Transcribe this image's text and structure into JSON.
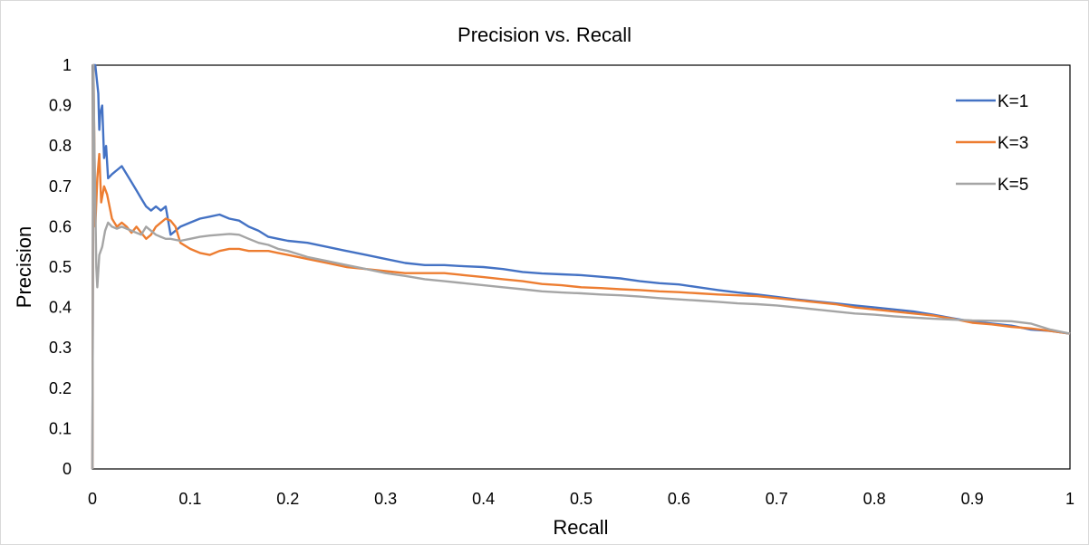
{
  "chart_data": {
    "type": "line",
    "title": "Precision vs. Recall",
    "xlabel": "Recall",
    "ylabel": "Precision",
    "xlim": [
      0,
      1
    ],
    "ylim": [
      0,
      1
    ],
    "x_ticks": [
      "0",
      "0.1",
      "0.2",
      "0.3",
      "0.4",
      "0.5",
      "0.6",
      "0.7",
      "0.8",
      "0.9",
      "1"
    ],
    "y_ticks": [
      "0",
      "0.1",
      "0.2",
      "0.3",
      "0.4",
      "0.5",
      "0.6",
      "0.7",
      "0.8",
      "0.9",
      "1"
    ],
    "grid": false,
    "legend_position": "top-right",
    "series": [
      {
        "name": "K=1",
        "color": "#4472C4",
        "points": [
          [
            0.0,
            0.0
          ],
          [
            0.001,
            1.0
          ],
          [
            0.003,
            1.0
          ],
          [
            0.006,
            0.93
          ],
          [
            0.007,
            0.84
          ],
          [
            0.008,
            0.88
          ],
          [
            0.01,
            0.9
          ],
          [
            0.012,
            0.77
          ],
          [
            0.014,
            0.8
          ],
          [
            0.016,
            0.72
          ],
          [
            0.02,
            0.73
          ],
          [
            0.025,
            0.74
          ],
          [
            0.03,
            0.75
          ],
          [
            0.035,
            0.73
          ],
          [
            0.04,
            0.71
          ],
          [
            0.045,
            0.69
          ],
          [
            0.05,
            0.67
          ],
          [
            0.055,
            0.65
          ],
          [
            0.06,
            0.64
          ],
          [
            0.065,
            0.65
          ],
          [
            0.07,
            0.64
          ],
          [
            0.075,
            0.65
          ],
          [
            0.08,
            0.58
          ],
          [
            0.09,
            0.6
          ],
          [
            0.1,
            0.61
          ],
          [
            0.11,
            0.62
          ],
          [
            0.12,
            0.625
          ],
          [
            0.13,
            0.63
          ],
          [
            0.14,
            0.62
          ],
          [
            0.15,
            0.615
          ],
          [
            0.16,
            0.6
          ],
          [
            0.17,
            0.59
          ],
          [
            0.18,
            0.575
          ],
          [
            0.19,
            0.57
          ],
          [
            0.2,
            0.565
          ],
          [
            0.22,
            0.56
          ],
          [
            0.24,
            0.55
          ],
          [
            0.26,
            0.54
          ],
          [
            0.28,
            0.53
          ],
          [
            0.3,
            0.52
          ],
          [
            0.32,
            0.51
          ],
          [
            0.34,
            0.505
          ],
          [
            0.36,
            0.505
          ],
          [
            0.38,
            0.502
          ],
          [
            0.4,
            0.5
          ],
          [
            0.42,
            0.495
          ],
          [
            0.44,
            0.488
          ],
          [
            0.46,
            0.484
          ],
          [
            0.48,
            0.482
          ],
          [
            0.5,
            0.48
          ],
          [
            0.52,
            0.476
          ],
          [
            0.54,
            0.472
          ],
          [
            0.56,
            0.465
          ],
          [
            0.58,
            0.46
          ],
          [
            0.6,
            0.457
          ],
          [
            0.62,
            0.45
          ],
          [
            0.64,
            0.443
          ],
          [
            0.66,
            0.437
          ],
          [
            0.68,
            0.432
          ],
          [
            0.7,
            0.426
          ],
          [
            0.72,
            0.42
          ],
          [
            0.74,
            0.415
          ],
          [
            0.76,
            0.41
          ],
          [
            0.78,
            0.405
          ],
          [
            0.8,
            0.4
          ],
          [
            0.82,
            0.395
          ],
          [
            0.84,
            0.39
          ],
          [
            0.86,
            0.382
          ],
          [
            0.88,
            0.373
          ],
          [
            0.9,
            0.365
          ],
          [
            0.92,
            0.36
          ],
          [
            0.94,
            0.355
          ],
          [
            0.96,
            0.345
          ],
          [
            0.98,
            0.342
          ],
          [
            1.0,
            0.335
          ]
        ]
      },
      {
        "name": "K=3",
        "color": "#ED7D31",
        "points": [
          [
            0.0,
            0.0
          ],
          [
            0.001,
            1.0
          ],
          [
            0.003,
            0.6
          ],
          [
            0.005,
            0.72
          ],
          [
            0.007,
            0.78
          ],
          [
            0.009,
            0.66
          ],
          [
            0.012,
            0.7
          ],
          [
            0.015,
            0.68
          ],
          [
            0.02,
            0.62
          ],
          [
            0.025,
            0.6
          ],
          [
            0.03,
            0.61
          ],
          [
            0.035,
            0.6
          ],
          [
            0.04,
            0.585
          ],
          [
            0.045,
            0.6
          ],
          [
            0.05,
            0.585
          ],
          [
            0.055,
            0.57
          ],
          [
            0.06,
            0.58
          ],
          [
            0.065,
            0.6
          ],
          [
            0.07,
            0.61
          ],
          [
            0.075,
            0.62
          ],
          [
            0.08,
            0.615
          ],
          [
            0.085,
            0.6
          ],
          [
            0.09,
            0.56
          ],
          [
            0.1,
            0.545
          ],
          [
            0.11,
            0.535
          ],
          [
            0.12,
            0.53
          ],
          [
            0.13,
            0.54
          ],
          [
            0.14,
            0.545
          ],
          [
            0.15,
            0.545
          ],
          [
            0.16,
            0.54
          ],
          [
            0.17,
            0.54
          ],
          [
            0.18,
            0.54
          ],
          [
            0.19,
            0.535
          ],
          [
            0.2,
            0.53
          ],
          [
            0.22,
            0.52
          ],
          [
            0.24,
            0.51
          ],
          [
            0.26,
            0.5
          ],
          [
            0.28,
            0.495
          ],
          [
            0.3,
            0.49
          ],
          [
            0.32,
            0.485
          ],
          [
            0.34,
            0.485
          ],
          [
            0.36,
            0.485
          ],
          [
            0.38,
            0.48
          ],
          [
            0.4,
            0.475
          ],
          [
            0.42,
            0.47
          ],
          [
            0.44,
            0.465
          ],
          [
            0.46,
            0.458
          ],
          [
            0.48,
            0.455
          ],
          [
            0.5,
            0.45
          ],
          [
            0.52,
            0.448
          ],
          [
            0.54,
            0.445
          ],
          [
            0.56,
            0.443
          ],
          [
            0.58,
            0.44
          ],
          [
            0.6,
            0.438
          ],
          [
            0.62,
            0.435
          ],
          [
            0.64,
            0.432
          ],
          [
            0.66,
            0.43
          ],
          [
            0.68,
            0.428
          ],
          [
            0.7,
            0.423
          ],
          [
            0.72,
            0.418
          ],
          [
            0.74,
            0.413
          ],
          [
            0.76,
            0.408
          ],
          [
            0.78,
            0.4
          ],
          [
            0.8,
            0.395
          ],
          [
            0.82,
            0.39
          ],
          [
            0.84,
            0.385
          ],
          [
            0.86,
            0.38
          ],
          [
            0.88,
            0.372
          ],
          [
            0.9,
            0.362
          ],
          [
            0.92,
            0.358
          ],
          [
            0.94,
            0.352
          ],
          [
            0.96,
            0.348
          ],
          [
            0.98,
            0.342
          ],
          [
            1.0,
            0.335
          ]
        ]
      },
      {
        "name": "K=5",
        "color": "#A5A5A5",
        "points": [
          [
            0.0,
            0.0
          ],
          [
            0.001,
            1.0
          ],
          [
            0.002,
            0.8
          ],
          [
            0.004,
            0.5
          ],
          [
            0.005,
            0.45
          ],
          [
            0.007,
            0.53
          ],
          [
            0.01,
            0.55
          ],
          [
            0.013,
            0.59
          ],
          [
            0.016,
            0.61
          ],
          [
            0.02,
            0.6
          ],
          [
            0.025,
            0.595
          ],
          [
            0.03,
            0.6
          ],
          [
            0.035,
            0.595
          ],
          [
            0.04,
            0.59
          ],
          [
            0.045,
            0.585
          ],
          [
            0.05,
            0.58
          ],
          [
            0.055,
            0.6
          ],
          [
            0.06,
            0.59
          ],
          [
            0.065,
            0.58
          ],
          [
            0.07,
            0.575
          ],
          [
            0.075,
            0.57
          ],
          [
            0.08,
            0.57
          ],
          [
            0.09,
            0.565
          ],
          [
            0.1,
            0.57
          ],
          [
            0.11,
            0.575
          ],
          [
            0.12,
            0.578
          ],
          [
            0.13,
            0.58
          ],
          [
            0.14,
            0.582
          ],
          [
            0.15,
            0.58
          ],
          [
            0.16,
            0.57
          ],
          [
            0.17,
            0.56
          ],
          [
            0.18,
            0.555
          ],
          [
            0.19,
            0.545
          ],
          [
            0.2,
            0.54
          ],
          [
            0.22,
            0.525
          ],
          [
            0.24,
            0.515
          ],
          [
            0.26,
            0.505
          ],
          [
            0.28,
            0.495
          ],
          [
            0.3,
            0.485
          ],
          [
            0.32,
            0.478
          ],
          [
            0.34,
            0.47
          ],
          [
            0.36,
            0.465
          ],
          [
            0.38,
            0.46
          ],
          [
            0.4,
            0.455
          ],
          [
            0.42,
            0.45
          ],
          [
            0.44,
            0.445
          ],
          [
            0.46,
            0.44
          ],
          [
            0.48,
            0.437
          ],
          [
            0.5,
            0.435
          ],
          [
            0.52,
            0.432
          ],
          [
            0.54,
            0.43
          ],
          [
            0.56,
            0.427
          ],
          [
            0.58,
            0.423
          ],
          [
            0.6,
            0.42
          ],
          [
            0.62,
            0.417
          ],
          [
            0.64,
            0.414
          ],
          [
            0.66,
            0.41
          ],
          [
            0.68,
            0.408
          ],
          [
            0.7,
            0.405
          ],
          [
            0.72,
            0.4
          ],
          [
            0.74,
            0.395
          ],
          [
            0.76,
            0.39
          ],
          [
            0.78,
            0.385
          ],
          [
            0.8,
            0.382
          ],
          [
            0.82,
            0.378
          ],
          [
            0.84,
            0.375
          ],
          [
            0.86,
            0.372
          ],
          [
            0.88,
            0.37
          ],
          [
            0.9,
            0.368
          ],
          [
            0.92,
            0.367
          ],
          [
            0.94,
            0.366
          ],
          [
            0.96,
            0.36
          ],
          [
            0.98,
            0.345
          ],
          [
            1.0,
            0.335
          ]
        ]
      }
    ]
  }
}
